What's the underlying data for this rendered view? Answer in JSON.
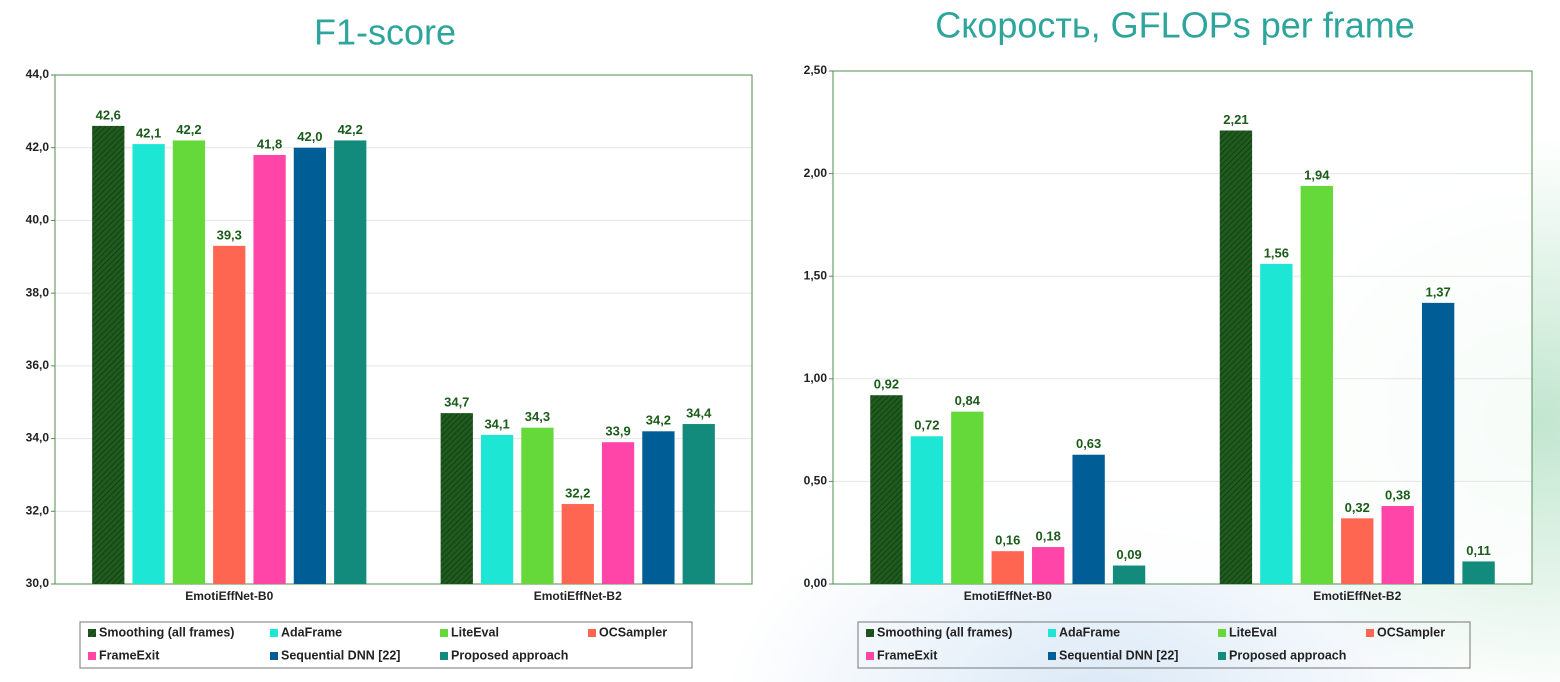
{
  "chart_data": [
    {
      "type": "bar",
      "title": "F1-score",
      "categories": [
        "EmotiEffNet-B0",
        "EmotiEffNet-B2"
      ],
      "series": [
        {
          "name": "Smoothing (all frames)",
          "color": "#1f5a1f",
          "pattern": "hatch",
          "values": [
            42.6,
            34.7
          ],
          "value_labels": [
            "42,6",
            "34,7"
          ]
        },
        {
          "name": "AdaFrame",
          "color": "#1ee6d4",
          "values": [
            42.1,
            34.1
          ],
          "value_labels": [
            "42,1",
            "34,1"
          ]
        },
        {
          "name": "LiteEval",
          "color": "#66d93a",
          "values": [
            42.2,
            34.3
          ],
          "value_labels": [
            "42,2",
            "34,3"
          ]
        },
        {
          "name": "OCSampler",
          "color": "#ff6652",
          "values": [
            39.3,
            32.2
          ],
          "value_labels": [
            "39,3",
            "32,2"
          ]
        },
        {
          "name": "FrameExit",
          "color": "#ff45a8",
          "values": [
            41.8,
            33.9
          ],
          "value_labels": [
            "41,8",
            "33,9"
          ]
        },
        {
          "name": "Sequential DNN [22]",
          "color": "#015d96",
          "values": [
            42.0,
            34.2
          ],
          "value_labels": [
            "42,0",
            "34,2"
          ]
        },
        {
          "name": "Proposed approach",
          "color": "#128a7c",
          "values": [
            42.2,
            34.4
          ],
          "value_labels": [
            "42,2",
            "34,4"
          ]
        }
      ],
      "ylim": [
        30,
        44
      ],
      "yticks": [
        {
          "value": 30,
          "label": "30,0"
        },
        {
          "value": 32,
          "label": "32,0"
        },
        {
          "value": 34,
          "label": "34,0"
        },
        {
          "value": 36,
          "label": "36,0"
        },
        {
          "value": 38,
          "label": "38,0"
        },
        {
          "value": 40,
          "label": "40,0"
        },
        {
          "value": 42,
          "label": "42,0"
        },
        {
          "value": 44,
          "label": "44,0"
        }
      ],
      "grid": true,
      "legend": "bottom"
    },
    {
      "type": "bar",
      "title": "Скорость, GFLOPs per frame",
      "categories": [
        "EmotiEffNet-B0",
        "EmotiEffNet-B2"
      ],
      "series": [
        {
          "name": "Smoothing (all frames)",
          "color": "#1f5a1f",
          "pattern": "hatch",
          "values": [
            0.92,
            2.21
          ],
          "value_labels": [
            "0,92",
            "2,21"
          ]
        },
        {
          "name": "AdaFrame",
          "color": "#1ee6d4",
          "values": [
            0.72,
            1.56
          ],
          "value_labels": [
            "0,72",
            "1,56"
          ]
        },
        {
          "name": "LiteEval",
          "color": "#66d93a",
          "values": [
            0.84,
            1.94
          ],
          "value_labels": [
            "0,84",
            "1,94"
          ]
        },
        {
          "name": "OCSampler",
          "color": "#ff6652",
          "values": [
            0.16,
            0.32
          ],
          "value_labels": [
            "0,16",
            "0,32"
          ]
        },
        {
          "name": "FrameExit",
          "color": "#ff45a8",
          "values": [
            0.18,
            0.38
          ],
          "value_labels": [
            "0,18",
            "0,38"
          ]
        },
        {
          "name": "Sequential DNN [22]",
          "color": "#015d96",
          "values": [
            0.63,
            1.37
          ],
          "value_labels": [
            "0,63",
            "1,37"
          ]
        },
        {
          "name": "Proposed approach",
          "color": "#128a7c",
          "values": [
            0.09,
            0.11
          ],
          "value_labels": [
            "0,09",
            "0,11"
          ]
        }
      ],
      "ylim": [
        0,
        2.5
      ],
      "yticks": [
        {
          "value": 0,
          "label": "0,00"
        },
        {
          "value": 0.5,
          "label": "0,50"
        },
        {
          "value": 1,
          "label": "1,00"
        },
        {
          "value": 1.5,
          "label": "1,50"
        },
        {
          "value": 2,
          "label": "2,00"
        },
        {
          "value": 2.5,
          "label": "2,50"
        }
      ],
      "grid": true,
      "legend": "bottom"
    }
  ]
}
